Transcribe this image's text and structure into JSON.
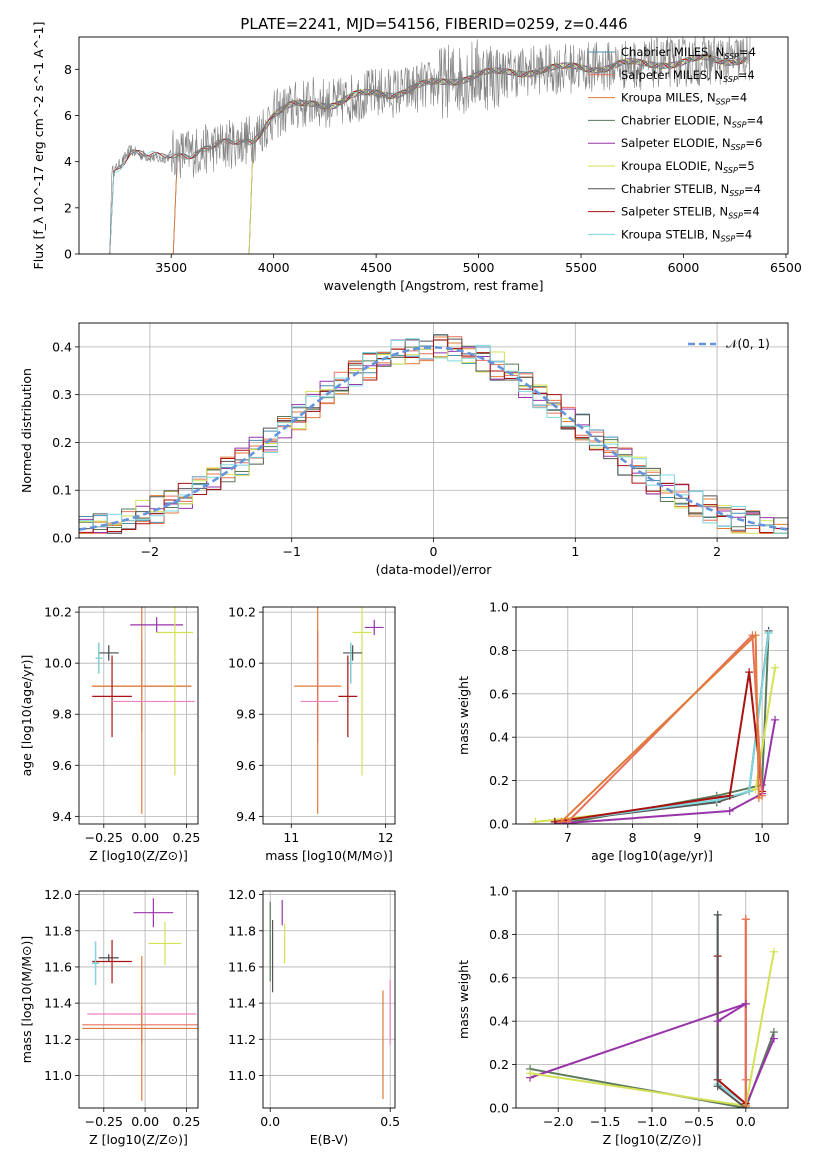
{
  "title": "PLATE=2241, MJD=54156, FIBERID=0259, z=0.446",
  "colors": {
    "chabrier_miles": "#4c8fb0",
    "salpeter_miles": "#e8705a",
    "kroupa_miles": "#e07b39",
    "chabrier_elodie": "#5a7a5a",
    "salpeter_elodie": "#9933aa",
    "kroupa_elodie": "#d4e157",
    "chabrier_stelib": "#555555",
    "salpeter_stelib": "#aa1111",
    "kroupa_stelib": "#7fd8e0",
    "data": "#808080",
    "gaussian": "#6495dc",
    "pink": "#ee82c8"
  },
  "chart_data": [
    {
      "id": "spectrum",
      "type": "line",
      "title": "PLATE=2241, MJD=54156, FIBERID=0259, z=0.446",
      "xlabel": "wavelength [Angstrom, rest frame]",
      "ylabel": "Flux [f_λ 10^-17 erg cm^-2 s^-1 A^-1]",
      "xlim": [
        3050,
        6510
      ],
      "ylim": [
        0,
        9.4
      ],
      "xticks": [
        "3500",
        "4000",
        "4500",
        "5000",
        "5500",
        "6000",
        "6500"
      ],
      "yticks": [
        "0",
        "2",
        "4",
        "6",
        "8"
      ],
      "legend_position": "right",
      "legend": [
        "Chabrier MILES, N_SSP=4",
        "Salpeter MILES, N_SSP=4",
        "Kroupa MILES, N_SSP=4",
        "Chabrier ELODIE, N_SSP=4",
        "Salpeter ELODIE, N_SSP=6",
        "Kroupa ELODIE, N_SSP=5",
        "Chabrier STELIB, N_SSP=4",
        "Salpeter STELIB, N_SSP=4",
        "Kroupa STELIB, N_SSP=4"
      ],
      "continuum": {
        "x": [
          3220,
          3260,
          3300,
          3350,
          3400,
          3450,
          3500,
          3600,
          3700,
          3800,
          3900,
          4000,
          4100,
          4200,
          4300,
          4400,
          4500,
          4600,
          4700,
          4800,
          4900,
          5000,
          5100,
          5200,
          5300,
          5400,
          5500,
          5600,
          5700,
          5800,
          5900,
          6000,
          6100,
          6200,
          6300
        ],
        "y": [
          3.6,
          4.0,
          4.5,
          4.3,
          4.2,
          4.1,
          4.3,
          4.4,
          4.6,
          4.8,
          5.0,
          6.0,
          6.4,
          6.6,
          6.5,
          6.8,
          7.0,
          7.0,
          7.2,
          7.4,
          7.6,
          7.8,
          7.8,
          7.9,
          8.0,
          8.0,
          8.1,
          8.1,
          8.2,
          8.2,
          8.3,
          8.3,
          8.4,
          8.4,
          8.5
        ]
      },
      "model_starts": [
        3220,
        3530,
        3900
      ]
    },
    {
      "id": "residuals",
      "type": "line",
      "xlabel": "(data-model)/error",
      "ylabel": "Normed distribution",
      "xlim": [
        -2.5,
        2.5
      ],
      "ylim": [
        0,
        0.45
      ],
      "xticks": [
        "-2",
        "-1",
        "0",
        "1",
        "2"
      ],
      "yticks": [
        "0.0",
        "0.1",
        "0.2",
        "0.3",
        "0.4"
      ],
      "legend": [
        "𝒩(0, 1)"
      ],
      "legend_position": "top-right",
      "gaussian": {
        "mean": 0,
        "sigma": 1
      }
    },
    {
      "id": "age-vs-z",
      "type": "scatter",
      "xlabel": "Z [log10(Z/Z⊙)]",
      "ylabel": "age  [log10(age/yr)]",
      "xlim": [
        -0.4,
        0.32
      ],
      "ylim": [
        9.37,
        10.22
      ],
      "xticks": [
        "-0.25",
        "0.00",
        "0.25"
      ],
      "yticks": [
        "9.4",
        "9.6",
        "9.8",
        "10.0",
        "10.2"
      ],
      "points": [
        {
          "c": "chabrier_miles",
          "x": -0.22,
          "xe": 0.06,
          "y": 10.04,
          "ye": 0.03
        },
        {
          "c": "salpeter_miles",
          "x": -0.02,
          "xe": 0.3,
          "y": 9.91,
          "ye": 0.18
        },
        {
          "c": "kroupa_miles",
          "x": -0.02,
          "xe": 0.3,
          "y": 9.91,
          "ye": 0.5
        },
        {
          "c": "chabrier_elodie",
          "x": -0.28,
          "xe": 0.02,
          "y": 10.02,
          "ye": 0.06
        },
        {
          "c": "salpeter_elodie",
          "x": 0.07,
          "xe": 0.16,
          "y": 10.15,
          "ye": 0.03
        },
        {
          "c": "kroupa_elodie",
          "x": 0.18,
          "xe": 0.11,
          "y": 10.12,
          "ye": 0.56
        },
        {
          "c": "chabrier_stelib",
          "x": -0.22,
          "xe": 0.06,
          "y": 10.04,
          "ye": 0.03
        },
        {
          "c": "salpeter_stelib",
          "x": -0.2,
          "xe": 0.12,
          "y": 9.87,
          "ye": 0.16
        },
        {
          "c": "pink",
          "x": 0.05,
          "xe": 0.25,
          "y": 9.85,
          "ye": 0.0
        },
        {
          "c": "kroupa_stelib",
          "x": -0.28,
          "xe": 0.02,
          "y": 10.02,
          "ye": 0.06
        }
      ]
    },
    {
      "id": "age-vs-mass",
      "type": "scatter",
      "xlabel": "mass [log10(M/M⊙)]",
      "ylabel": "",
      "xlim": [
        10.7,
        12.1
      ],
      "ylim": [
        9.37,
        10.22
      ],
      "xticks": [
        "11",
        "12"
      ],
      "yticks": [
        "9.4",
        "9.6",
        "9.8",
        "10.0",
        "10.2"
      ],
      "points": [
        {
          "c": "chabrier_miles",
          "x": 11.65,
          "xe": 0.1,
          "y": 10.04,
          "ye": 0.03
        },
        {
          "c": "kroupa_miles",
          "x": 11.28,
          "xe": 0.25,
          "y": 9.91,
          "ye": 0.5
        },
        {
          "c": "salpeter_miles",
          "x": 11.28,
          "xe": 0.0,
          "y": 9.91,
          "ye": 0.22
        },
        {
          "c": "chabrier_elodie",
          "x": 11.63,
          "xe": 0.02,
          "y": 10.0,
          "ye": 0.08
        },
        {
          "c": "salpeter_elodie",
          "x": 11.88,
          "xe": 0.1,
          "y": 10.14,
          "ye": 0.03
        },
        {
          "c": "kroupa_elodie",
          "x": 11.75,
          "xe": 0.1,
          "y": 10.12,
          "ye": 0.56
        },
        {
          "c": "chabrier_stelib",
          "x": 11.65,
          "xe": 0.1,
          "y": 10.04,
          "ye": 0.03
        },
        {
          "c": "salpeter_stelib",
          "x": 11.6,
          "xe": 0.1,
          "y": 9.87,
          "ye": 0.16
        },
        {
          "c": "pink",
          "x": 11.3,
          "xe": 0.2,
          "y": 9.85,
          "ye": 0.0
        },
        {
          "c": "kroupa_stelib",
          "x": 11.63,
          "xe": 0.02,
          "y": 10.0,
          "ye": 0.08
        }
      ]
    },
    {
      "id": "weight-vs-age",
      "type": "line",
      "xlabel": "age  [log10(age/yr)]",
      "ylabel": "mass weight",
      "xlim": [
        6.2,
        10.4
      ],
      "ylim": [
        0,
        1
      ],
      "xticks": [
        "7",
        "8",
        "9",
        "10"
      ],
      "yticks": [
        "0.0",
        "0.2",
        "0.4",
        "0.6",
        "0.8",
        "1.0"
      ],
      "series": [
        {
          "c": "chabrier_elodie",
          "x": [
            6.9,
            9.3,
            10.0,
            10.1
          ],
          "y": [
            0.0,
            0.13,
            0.18,
            0.88
          ]
        },
        {
          "c": "kroupa_elodie",
          "x": [
            6.5,
            9.3,
            9.9,
            10.2
          ],
          "y": [
            0.01,
            0.1,
            0.16,
            0.72
          ]
        },
        {
          "c": "salpeter_elodie",
          "x": [
            6.8,
            9.5,
            10.0,
            10.2
          ],
          "y": [
            0.0,
            0.06,
            0.14,
            0.48
          ]
        },
        {
          "c": "chabrier_stelib",
          "x": [
            6.8,
            9.3,
            9.8,
            10.1
          ],
          "y": [
            0.01,
            0.1,
            0.15,
            0.89
          ]
        },
        {
          "c": "kroupa_stelib",
          "x": [
            6.8,
            9.3,
            9.8,
            10.1
          ],
          "y": [
            0.01,
            0.11,
            0.15,
            0.88
          ]
        },
        {
          "c": "salpeter_stelib",
          "x": [
            6.8,
            9.5,
            9.8,
            10.0
          ],
          "y": [
            0.01,
            0.13,
            0.7,
            0.15
          ]
        },
        {
          "c": "salpeter_miles",
          "x": [
            7.0,
            9.85,
            10.0
          ],
          "y": [
            0.01,
            0.87,
            0.13
          ]
        },
        {
          "c": "kroupa_miles",
          "x": [
            6.9,
            9.9,
            9.95
          ],
          "y": [
            0.01,
            0.87,
            0.12
          ]
        }
      ]
    },
    {
      "id": "mass-vs-z",
      "type": "scatter",
      "xlabel": "Z [log10(Z/Z⊙)]",
      "ylabel": "mass [log10(M/M⊙)]",
      "xlim": [
        -0.4,
        0.32
      ],
      "ylim": [
        10.82,
        12.02
      ],
      "xticks": [
        "-0.25",
        "0.00",
        "0.25"
      ],
      "yticks": [
        "11.0",
        "11.2",
        "11.4",
        "11.6",
        "11.8",
        "12.0"
      ],
      "points": [
        {
          "c": "chabrier_miles",
          "x": -0.22,
          "xe": 0.06,
          "y": 11.65,
          "ye": 0.02
        },
        {
          "c": "salpeter_miles",
          "x": -0.02,
          "xe": 0.36,
          "y": 11.28,
          "ye": 0.1
        },
        {
          "c": "kroupa_miles",
          "x": -0.02,
          "xe": 0.36,
          "y": 11.26,
          "ye": 0.4
        },
        {
          "c": "chabrier_elodie",
          "x": -0.3,
          "xe": 0.02,
          "y": 11.62,
          "ye": 0.12
        },
        {
          "c": "salpeter_elodie",
          "x": 0.05,
          "xe": 0.12,
          "y": 11.9,
          "ye": 0.08
        },
        {
          "c": "kroupa_elodie",
          "x": 0.12,
          "xe": 0.1,
          "y": 11.73,
          "ye": 0.12
        },
        {
          "c": "chabrier_stelib",
          "x": -0.22,
          "xe": 0.06,
          "y": 11.65,
          "ye": 0.02
        },
        {
          "c": "salpeter_stelib",
          "x": -0.2,
          "xe": 0.12,
          "y": 11.63,
          "ye": 0.12
        },
        {
          "c": "pink",
          "x": -0.02,
          "xe": 0.33,
          "y": 11.34,
          "ye": 0.0
        },
        {
          "c": "kroupa_stelib",
          "x": -0.3,
          "xe": 0.02,
          "y": 11.62,
          "ye": 0.12
        }
      ]
    },
    {
      "id": "mass-vs-ebv",
      "type": "scatter",
      "xlabel": "E(B-V)",
      "ylabel": "",
      "xlim": [
        -0.03,
        0.52
      ],
      "ylim": [
        10.82,
        12.02
      ],
      "xticks": [
        "0.0",
        "0.5"
      ],
      "yticks": [
        "11.0",
        "11.2",
        "11.4",
        "11.6",
        "11.8",
        "12.0"
      ],
      "points": [
        {
          "c": "chabrier_elodie",
          "x": 0.0,
          "xe": 0.0,
          "y": 11.74,
          "ye": 0.22
        },
        {
          "c": "chabrier_stelib",
          "x": 0.01,
          "xe": 0.0,
          "y": 11.66,
          "ye": 0.2
        },
        {
          "c": "salpeter_elodie",
          "x": 0.05,
          "xe": 0.0,
          "y": 11.9,
          "ye": 0.07
        },
        {
          "c": "kroupa_elodie",
          "x": 0.06,
          "xe": 0.0,
          "y": 11.73,
          "ye": 0.11
        },
        {
          "c": "kroupa_miles",
          "x": 0.47,
          "xe": 0.0,
          "y": 11.17,
          "ye": 0.3
        },
        {
          "c": "pink",
          "x": 0.5,
          "xe": 0.0,
          "y": 11.35,
          "ye": 0.18
        }
      ]
    },
    {
      "id": "weight-vs-z",
      "type": "line",
      "xlabel": "Z [log10(Z/Z⊙)]",
      "ylabel": "mass weight",
      "xlim": [
        -2.45,
        0.45
      ],
      "ylim": [
        0,
        1
      ],
      "xticks": [
        "-2.0",
        "-1.5",
        "-1.0",
        "-0.5",
        "0.0"
      ],
      "yticks": [
        "0.0",
        "0.2",
        "0.4",
        "0.6",
        "0.8",
        "1.0"
      ],
      "series": [
        {
          "c": "chabrier_elodie",
          "x": [
            -2.3,
            0.0,
            0.3
          ],
          "y": [
            0.18,
            0.0,
            0.35
          ]
        },
        {
          "c": "salpeter_elodie",
          "x": [
            -2.3,
            0.0,
            0.0,
            0.3
          ],
          "y": [
            0.14,
            0.48,
            0.01,
            0.32
          ]
        },
        {
          "c": "kroupa_elodie",
          "x": [
            -2.3,
            0.0,
            0.3
          ],
          "y": [
            0.16,
            0.01,
            0.72
          ]
        },
        {
          "c": "kroupa_stelib",
          "x": [
            -0.3,
            -0.3,
            0.0
          ],
          "y": [
            0.89,
            0.11,
            0.02
          ]
        },
        {
          "c": "salpeter_stelib",
          "x": [
            -0.3,
            -0.3,
            0.0
          ],
          "y": [
            0.7,
            0.13,
            0.02
          ]
        },
        {
          "c": "chabrier_stelib",
          "x": [
            -0.3,
            -0.3,
            0.0
          ],
          "y": [
            0.89,
            0.1,
            0.0
          ]
        },
        {
          "c": "kroupa_miles",
          "x": [
            0.0,
            0.0
          ],
          "y": [
            0.87,
            0.01
          ]
        },
        {
          "c": "salpeter_miles",
          "x": [
            0.0,
            0.0
          ],
          "y": [
            0.87,
            0.13
          ]
        },
        {
          "c": "salpeter_elodie",
          "x": [
            -0.3,
            0.0
          ],
          "y": [
            0.4,
            0.48
          ]
        }
      ]
    }
  ]
}
